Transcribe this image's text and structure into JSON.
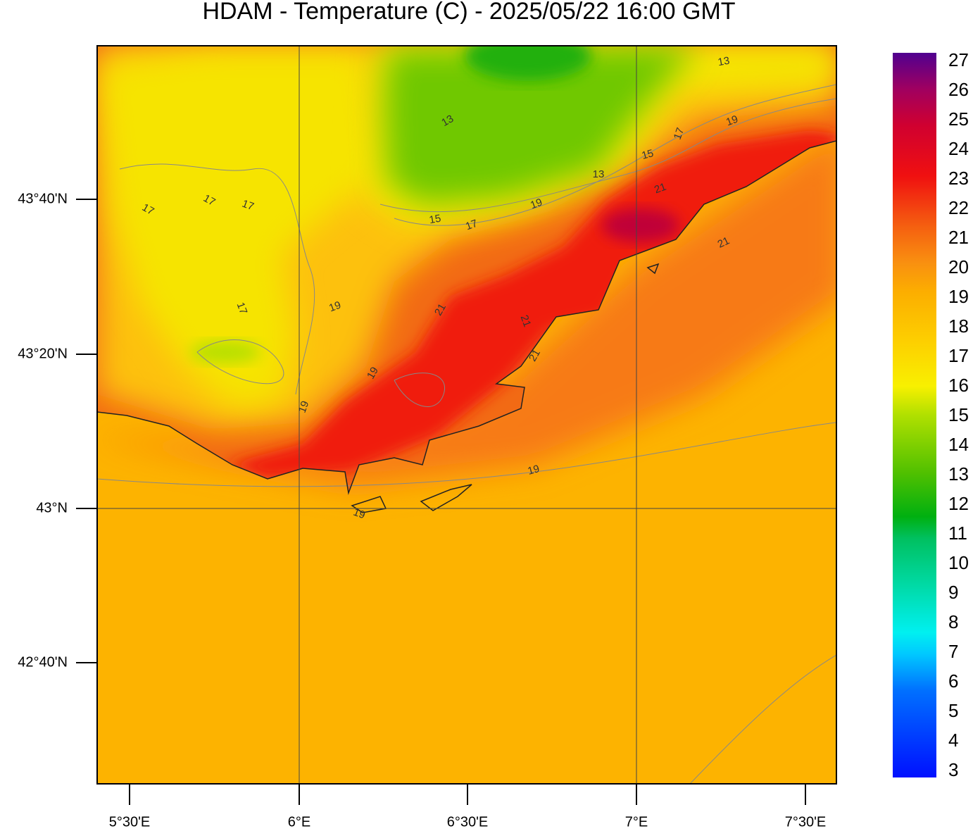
{
  "title": "HDAM - Temperature (C)  -  2025/05/22  16:00 GMT",
  "map": {
    "lat_labels": [
      "43°40'N",
      "43°20'N",
      "43°N",
      "42°40'N"
    ],
    "lon_labels": [
      "5°30'E",
      "6°E",
      "6°30'E",
      "7°E",
      "7°30'E"
    ],
    "contour_labels": [
      "13",
      "13",
      "13",
      "15",
      "15",
      "17",
      "17",
      "17",
      "17",
      "17",
      "17",
      "19",
      "19",
      "19",
      "19",
      "19",
      "19",
      "19",
      "21",
      "21",
      "21",
      "21",
      "21"
    ]
  },
  "colorbar": {
    "labels": [
      3,
      4,
      5,
      6,
      7,
      8,
      9,
      10,
      11,
      12,
      13,
      14,
      15,
      16,
      17,
      18,
      19,
      20,
      21,
      22,
      23,
      24,
      25,
      26,
      27
    ]
  }
}
